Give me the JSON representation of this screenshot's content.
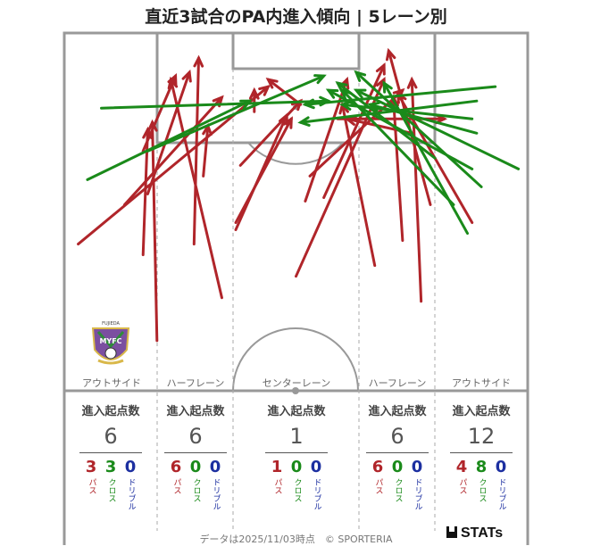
{
  "title": "直近3試合のPA内進入傾向 | 5レーン別",
  "colors": {
    "pass": "#b0252a",
    "cross": "#1a8a1a",
    "dribble": "#1c2fa0",
    "pitch_line": "#999999"
  },
  "lanes": [
    {
      "label": "アウトサイド",
      "stat_head": "進入起点数",
      "total": "6",
      "pass": "3",
      "cross": "3",
      "dribble": "0",
      "pass_label": "パス",
      "cross_label": "クロス",
      "dribble_label": "ドリブル"
    },
    {
      "label": "ハーフレーン",
      "stat_head": "進入起点数",
      "total": "6",
      "pass": "6",
      "cross": "0",
      "dribble": "0",
      "pass_label": "パス",
      "cross_label": "クロス",
      "dribble_label": "ドリブル"
    },
    {
      "label": "センターレーン",
      "stat_head": "進入起点数",
      "total": "1",
      "pass": "1",
      "cross": "0",
      "dribble": "0",
      "pass_label": "パス",
      "cross_label": "クロス",
      "dribble_label": "ドリブル"
    },
    {
      "label": "ハーフレーン",
      "stat_head": "進入起点数",
      "total": "6",
      "pass": "6",
      "cross": "0",
      "dribble": "0",
      "pass_label": "パス",
      "cross_label": "クロス",
      "dribble_label": "ドリブル"
    },
    {
      "label": "アウトサイド",
      "stat_head": "進入起点数",
      "total": "12",
      "pass": "4",
      "cross": "8",
      "dribble": "0",
      "pass_label": "パス",
      "cross_label": "クロス",
      "dribble_label": "ドリブル"
    }
  ],
  "crest": {
    "text_top": "FUJIEDA",
    "text_mid": "MYFC",
    "text_bottom": "SINCE 2009"
  },
  "footer": {
    "note": "データは2025/11/03時点　© SPORTERIA",
    "brand": "STATs"
  },
  "chart_data": {
    "type": "scatter",
    "title": "直近3試合のPA内進入傾向 | 5レーン別",
    "coordinate_system": "pitch scale: x 0–100 across width (left to right), y 0–100 from goal line downward",
    "series": [
      {
        "name": "パス",
        "kind": "pass",
        "arrows": [
          [
            3,
            59,
            44,
            15
          ],
          [
            20,
            86,
            19,
            25
          ],
          [
            13,
            48,
            34,
            18
          ],
          [
            17,
            62,
            18,
            27
          ],
          [
            28,
            59,
            29,
            7
          ],
          [
            37,
            53,
            49,
            24
          ],
          [
            37,
            55,
            48,
            23
          ],
          [
            30,
            40,
            31,
            26
          ],
          [
            34,
            74,
            23,
            13
          ],
          [
            18,
            45,
            27,
            11
          ],
          [
            41,
            22,
            41,
            16
          ],
          [
            51,
            20,
            44,
            13
          ],
          [
            52,
            47,
            61,
            13
          ],
          [
            50,
            68,
            69,
            13
          ],
          [
            67,
            65,
            60,
            20
          ],
          [
            75,
            28,
            61,
            24
          ],
          [
            77,
            75,
            75,
            13
          ],
          [
            73,
            58,
            71,
            18
          ],
          [
            53,
            40,
            73,
            16
          ],
          [
            79,
            48,
            70,
            5
          ],
          [
            88,
            53,
            72,
            17
          ],
          [
            59,
            24,
            82,
            24
          ],
          [
            56,
            46,
            69,
            9
          ],
          [
            38,
            37,
            51,
            19
          ],
          [
            17,
            33,
            24,
            12
          ]
        ]
      },
      {
        "name": "クロス",
        "kind": "cross",
        "arrows": [
          [
            8,
            21,
            57,
            19
          ],
          [
            5,
            41,
            40,
            19
          ],
          [
            18,
            33,
            56,
            12
          ],
          [
            89,
            19,
            51,
            25
          ],
          [
            89,
            28,
            66,
            20
          ],
          [
            98,
            38,
            63,
            16
          ],
          [
            90,
            43,
            63,
            11
          ],
          [
            88,
            38,
            57,
            16
          ],
          [
            80,
            35,
            59,
            14
          ],
          [
            84,
            48,
            60,
            16
          ],
          [
            87,
            56,
            69,
            14
          ],
          [
            93,
            15,
            52,
            20
          ],
          [
            88,
            24,
            60,
            20
          ]
        ]
      }
    ]
  }
}
